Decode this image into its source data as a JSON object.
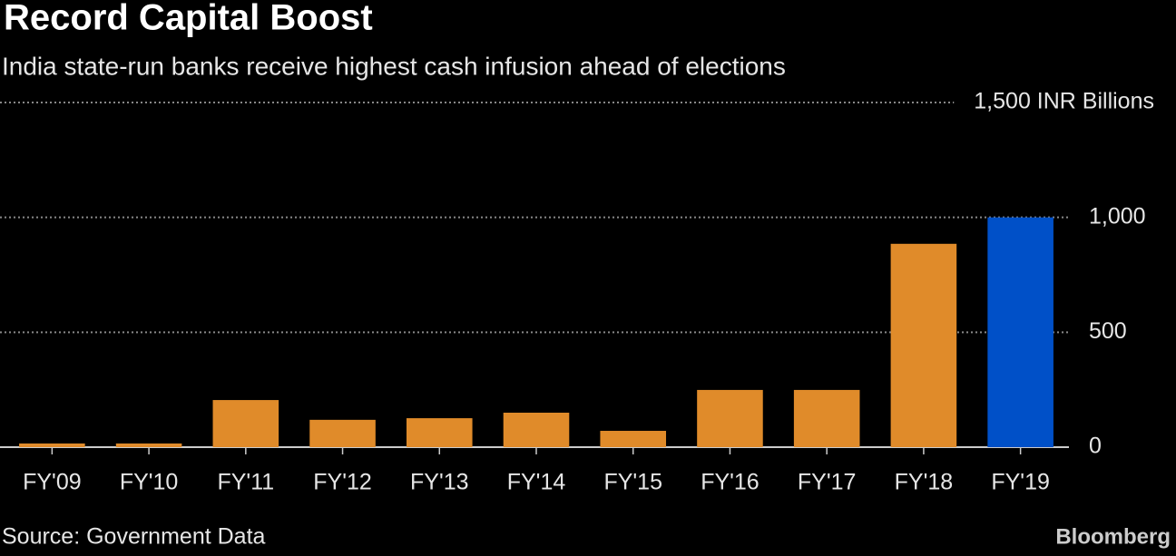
{
  "chart_data": {
    "type": "bar",
    "title": "Record Capital Boost",
    "subtitle": "India state-run banks receive highest cash infusion ahead of elections",
    "categories": [
      "FY'09",
      "FY'10",
      "FY'11",
      "FY'12",
      "FY'13",
      "FY'14",
      "FY'15",
      "FY'16",
      "FY'17",
      "FY'18",
      "FY'19"
    ],
    "values": [
      16,
      16,
      205,
      119,
      126,
      150,
      71,
      249,
      249,
      885,
      1000
    ],
    "colors": [
      "#e08b2a",
      "#e08b2a",
      "#e08b2a",
      "#e08b2a",
      "#e08b2a",
      "#e08b2a",
      "#e08b2a",
      "#e08b2a",
      "#e08b2a",
      "#e08b2a",
      "#0050c8"
    ],
    "ylim": [
      0,
      1500
    ],
    "yticks": [
      0,
      500,
      {
        "value": 1000,
        "label": "1,000"
      },
      {
        "value": 1500,
        "label": "1,500 INR Billions"
      }
    ],
    "grid": true,
    "source": "Source: Government Data",
    "brand": "Bloomberg"
  }
}
